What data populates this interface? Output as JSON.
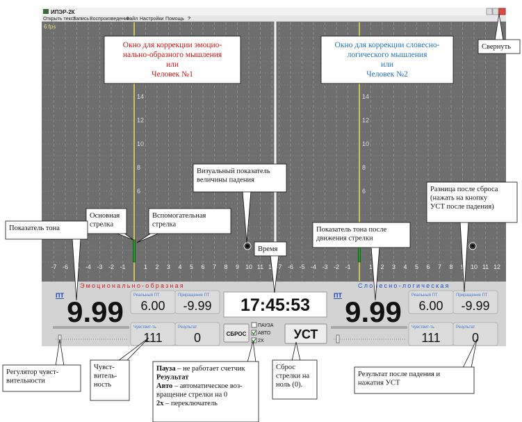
{
  "window": {
    "title": "ИПЭР-2К",
    "menu": [
      "Открыть текст",
      "Запись",
      "Воспроизведение",
      "Файл",
      "Настройки",
      "Помощь",
      "?"
    ],
    "fps": "6 fps"
  },
  "graph": {
    "y_labels": [
      "14",
      "12",
      "10",
      "8",
      "6"
    ],
    "x_labels": [
      "-7",
      "-6",
      "-5",
      "-4",
      "-3",
      "-2",
      "-1",
      "1",
      "2",
      "3",
      "4",
      "5",
      "6",
      "7",
      "8",
      "9",
      "10",
      "11",
      "12"
    ]
  },
  "panels": [
    {
      "heading": "Эмоционально-образная",
      "pt": "ПТ",
      "tone": "9.99",
      "real_label": "Реальный ПТ",
      "real": "6.00",
      "incr_label": "Приращение ПТ",
      "incr": "-9.99",
      "sens_label": "Чувствит-ть",
      "sens": "111",
      "result_label": "Результат",
      "result": "0"
    },
    {
      "heading": "Словесно-логическая",
      "pt": "ПТ",
      "tone": "9.99",
      "real_label": "Реальный ПТ",
      "real": "6.00",
      "incr_label": "Приращение ПТ",
      "incr": "-9.99",
      "sens_label": "Чувствит-ть",
      "sens": "111",
      "result_label": "Результат",
      "result": "0"
    }
  ],
  "controls": {
    "time": "17:45:53",
    "reset": "СБРОС",
    "pause": "ПАУЗА",
    "auto": "АВТО",
    "double": "2Х",
    "set": "УСТ"
  },
  "callouts": [
    {
      "lines": [
        "Окно для коррекции эмоцио-",
        "нально-образного мышления",
        "или",
        "Человек №1"
      ]
    },
    {
      "lines": [
        "Окно для коррекции словесно-",
        "логического мышления",
        "или",
        "Человек №2"
      ]
    },
    {
      "lines": [
        "Свернуть"
      ]
    },
    {
      "lines": [
        "Визуальный показатель",
        "величины падения"
      ]
    },
    {
      "lines": [
        "Основная",
        "стрелка"
      ]
    },
    {
      "lines": [
        "Вспомогательная",
        "стрелка"
      ]
    },
    {
      "lines": [
        "Показатель тона"
      ]
    },
    {
      "lines": [
        "Время"
      ]
    },
    {
      "lines": [
        "Показатель тона после",
        "движения стрелки"
      ]
    },
    {
      "lines": [
        "Разница после сброса",
        "(нажать на кнопку",
        "УСТ после падения)"
      ]
    },
    {
      "lines": [
        "Регулятор чувст-",
        "вительности"
      ]
    },
    {
      "lines": [
        "Чувст-",
        "витель-",
        "ность"
      ]
    },
    {
      "lines": [
        {
          "bold": "Пауза",
          "text": " – не работает счетчик"
        },
        {
          "bold": "Результат"
        },
        {
          "bold": "Авто",
          "text": " – автоматическое воз-"
        },
        "вращение стрелки на 0",
        {
          "bold": "2х",
          "text": " – переключатель"
        }
      ]
    },
    {
      "lines": [
        "Сброс",
        "стрелки на",
        "ноль (0)."
      ]
    },
    {
      "lines": [
        "Результат после падения и",
        "нажатия УСТ"
      ]
    }
  ]
}
